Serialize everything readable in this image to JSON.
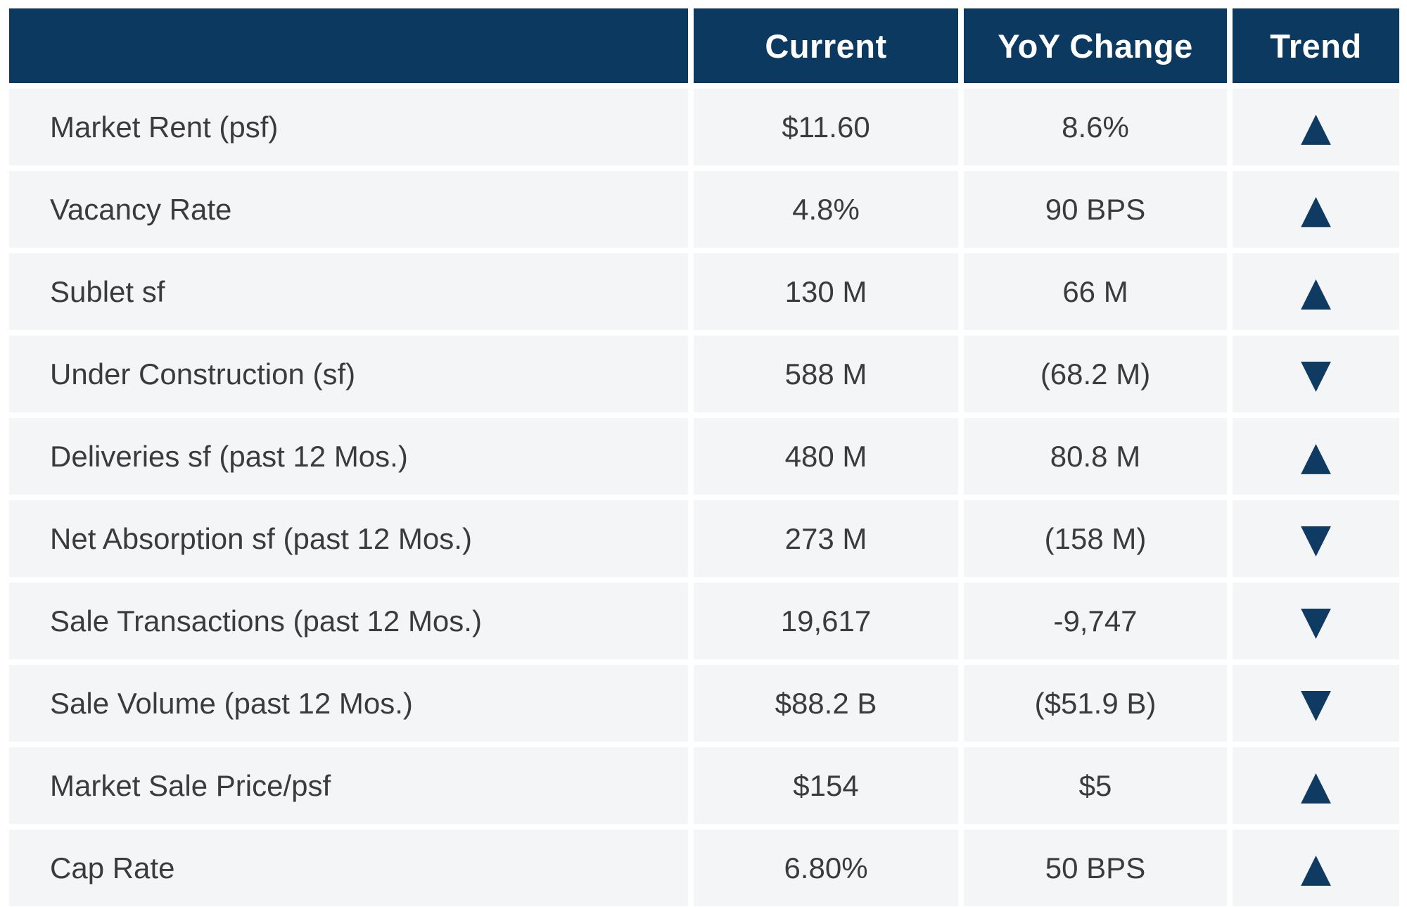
{
  "colors": {
    "header_bg": "#0b3960",
    "header_text": "#ffffff",
    "row_bg": "#f4f5f6",
    "body_text": "#3b3b3d",
    "trend_icon": "#0f3b63",
    "gutter": "#ffffff"
  },
  "table": {
    "columns": [
      {
        "label": ""
      },
      {
        "label": "Current"
      },
      {
        "label": "YoY Change"
      },
      {
        "label": "Trend"
      }
    ],
    "rows": [
      {
        "label": "Market Rent (psf)",
        "current": "$11.60",
        "yoy": "8.6%",
        "trend": "up",
        "trend_glyph": "▲"
      },
      {
        "label": "Vacancy Rate",
        "current": "4.8%",
        "yoy": "90 BPS",
        "trend": "up",
        "trend_glyph": "▲"
      },
      {
        "label": "Sublet sf",
        "current": "130 M",
        "yoy": "66 M",
        "trend": "up",
        "trend_glyph": "▲"
      },
      {
        "label": "Under Construction (sf)",
        "current": "588 M",
        "yoy": "(68.2 M)",
        "trend": "down",
        "trend_glyph": "▼"
      },
      {
        "label": "Deliveries sf (past 12 Mos.)",
        "current": "480 M",
        "yoy": "80.8 M",
        "trend": "up",
        "trend_glyph": "▲"
      },
      {
        "label": "Net Absorption sf (past 12 Mos.)",
        "current": "273 M",
        "yoy": "(158 M)",
        "trend": "down",
        "trend_glyph": "▼"
      },
      {
        "label": "Sale Transactions (past 12 Mos.)",
        "current": "19,617",
        "yoy": "-9,747",
        "trend": "down",
        "trend_glyph": "▼"
      },
      {
        "label": "Sale Volume (past 12 Mos.)",
        "current": "$88.2 B",
        "yoy": "($51.9 B)",
        "trend": "down",
        "trend_glyph": "▼"
      },
      {
        "label": "Market Sale Price/psf",
        "current": "$154",
        "yoy": "$5",
        "trend": "up",
        "trend_glyph": "▲"
      },
      {
        "label": "Cap Rate",
        "current": "6.80%",
        "yoy": "50 BPS",
        "trend": "up",
        "trend_glyph": "▲"
      }
    ]
  }
}
